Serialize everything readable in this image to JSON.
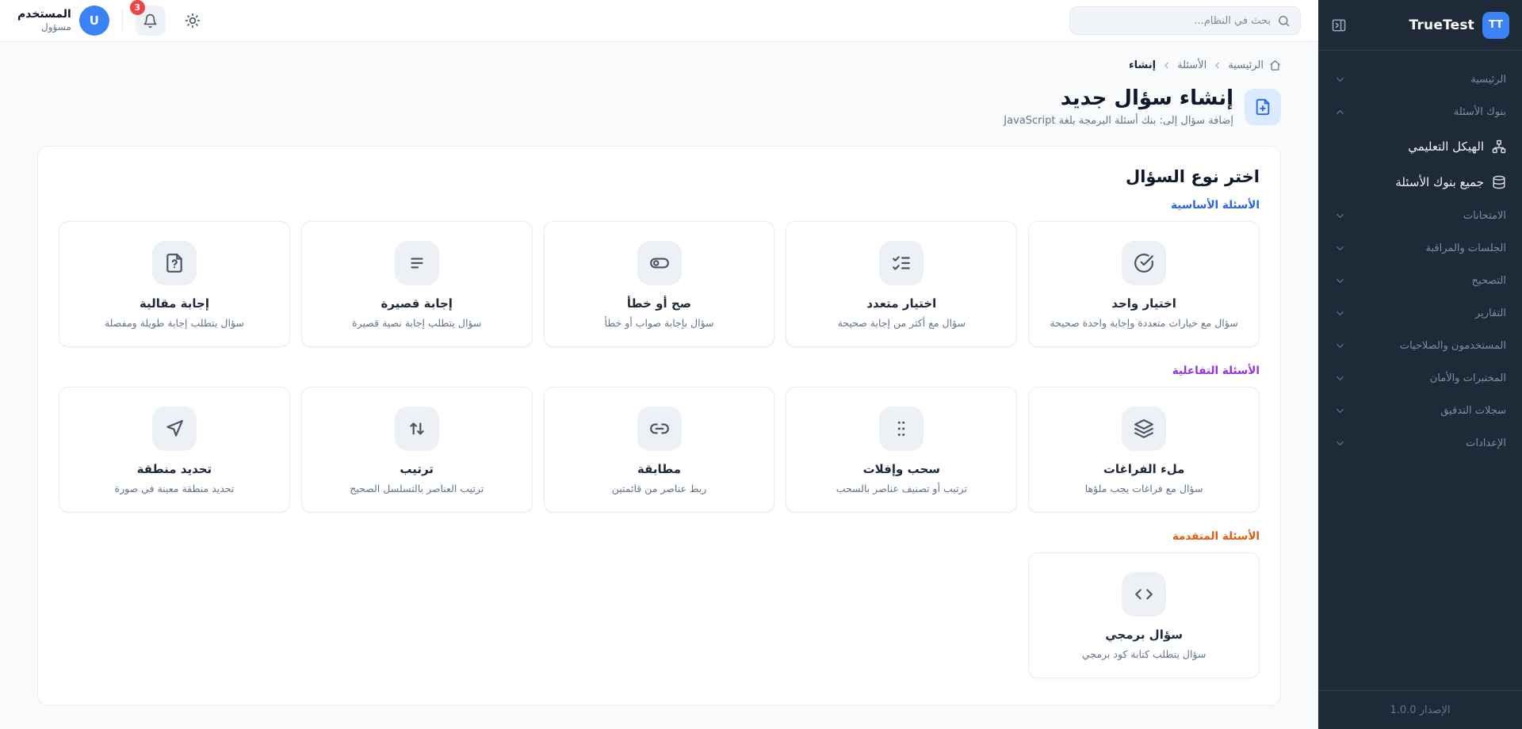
{
  "app": {
    "name": "TrueTest",
    "logo_initials": "TT",
    "version_label": "الإصدار 1.0.0"
  },
  "colors": {
    "sidebar_bg": "#1f2a39",
    "accent_blue": "#3b82f6",
    "badge_red": "#ef4444",
    "section_basic": "#2563eb",
    "section_interactive": "#9333ea",
    "section_advanced": "#ea580c"
  },
  "sidebar": {
    "items": [
      {
        "type": "parent",
        "label": "الرئيسية",
        "state": "collapsed"
      },
      {
        "type": "parent",
        "label": "بنوك الأسئلة",
        "state": "expanded"
      },
      {
        "type": "sub",
        "label": "الهيكل التعليمي",
        "icon": "tree"
      },
      {
        "type": "sub",
        "label": "جميع بنوك الأسئلة",
        "icon": "database"
      },
      {
        "type": "parent",
        "label": "الامتحانات",
        "state": "collapsed"
      },
      {
        "type": "parent",
        "label": "الجلسات والمراقبة",
        "state": "collapsed"
      },
      {
        "type": "parent",
        "label": "التصحيح",
        "state": "collapsed"
      },
      {
        "type": "parent",
        "label": "التقارير",
        "state": "collapsed"
      },
      {
        "type": "parent",
        "label": "المستخدمون والصلاحيات",
        "state": "collapsed"
      },
      {
        "type": "parent",
        "label": "المختبرات والأمان",
        "state": "collapsed"
      },
      {
        "type": "parent",
        "label": "سجلات التدقيق",
        "state": "collapsed"
      },
      {
        "type": "parent",
        "label": "الإعدادات",
        "state": "collapsed"
      }
    ]
  },
  "header": {
    "search_placeholder": "بحث في النظام...",
    "notification_count": "3",
    "user": {
      "name": "المستخدم",
      "role": "مسؤول",
      "avatar_initial": "U"
    }
  },
  "breadcrumb": {
    "items": [
      "الرئيسية",
      "الأسئلة",
      "إنشاء"
    ]
  },
  "page": {
    "title": "إنشاء سؤال جديد",
    "subtitle": "إضافة سؤال إلى: بنك أسئلة البرمجة بلغة JavaScript"
  },
  "question_picker": {
    "heading": "اختر نوع السؤال",
    "sections": [
      {
        "label": "الأسئلة الأساسية",
        "color": "#2563eb",
        "cards": [
          {
            "icon": "circle-check",
            "title": "اختيار واحد",
            "desc": "سؤال مع خيارات متعددة وإجابة واحدة صحيحة"
          },
          {
            "icon": "list-checks",
            "title": "اختيار متعدد",
            "desc": "سؤال مع أكثر من إجابة صحيحة"
          },
          {
            "icon": "toggle",
            "title": "صح أو خطأ",
            "desc": "سؤال بإجابة صواب أو خطأ"
          },
          {
            "icon": "text-lines",
            "title": "إجابة قصيرة",
            "desc": "سؤال يتطلب إجابة نصية قصيرة"
          },
          {
            "icon": "file-question",
            "title": "إجابة مقالية",
            "desc": "سؤال يتطلب إجابة طويلة ومفصلة"
          }
        ]
      },
      {
        "label": "الأسئلة التفاعلية",
        "color": "#9333ea",
        "cards": [
          {
            "icon": "layers",
            "title": "ملء الفراغات",
            "desc": "سؤال مع فراغات يجب ملؤها"
          },
          {
            "icon": "grip",
            "title": "سحب وإفلات",
            "desc": "ترتيب أو تصنيف عناصر بالسحب"
          },
          {
            "icon": "link",
            "title": "مطابقة",
            "desc": "ربط عناصر من قائمتين"
          },
          {
            "icon": "arrows-up-down",
            "title": "ترتيب",
            "desc": "ترتيب العناصر بالتسلسل الصحيح"
          },
          {
            "icon": "pointer",
            "title": "تحديد منطقة",
            "desc": "تحديد منطقة معينة في صورة"
          }
        ]
      },
      {
        "label": "الأسئلة المتقدمة",
        "color": "#ea580c",
        "cards": [
          {
            "icon": "code",
            "title": "سؤال برمجي",
            "desc": "سؤال يتطلب كتابة كود برمجي"
          }
        ]
      }
    ]
  }
}
